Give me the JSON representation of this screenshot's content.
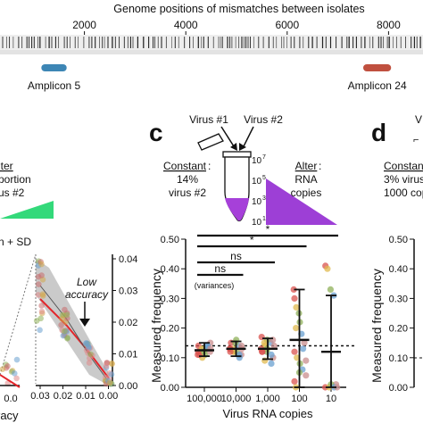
{
  "genome_bar": {
    "title": "Genome positions of mismatches between isolates",
    "ticks": [
      2000,
      4000,
      6000,
      8000
    ],
    "amplicons": [
      {
        "label": "Amplicon 5",
        "start": 1150,
        "end": 1650,
        "color": "#3d86b5"
      },
      {
        "label": "Amplicon 24",
        "start": 7500,
        "end": 8050,
        "color": "#c0503f"
      }
    ]
  },
  "panel_b_fragment": {
    "legend_alter": "lter",
    "legend_line2": "portion",
    "legend_line3": "us #2",
    "mean_sd_label": "n + SD",
    "annotation": "Low accuracy",
    "annotation_line1": "Low",
    "annotation_line2": "accuracy",
    "x_ticks": [
      "0.03",
      "0.02",
      "0.01",
      "0.00"
    ],
    "right_y_ticks": [
      "0.04",
      "0.03",
      "0.02",
      "0.01",
      "0.00"
    ],
    "bottom_tick": "0.0",
    "axis_fragment": "racy",
    "colors": {
      "trend": "#e3262b",
      "band": "#bdbdbd",
      "dots": "#c96b6b"
    }
  },
  "panel_c": {
    "letter": "c",
    "virus1": "Virus #1",
    "virus2": "Virus #2",
    "constant_label": "Constant",
    "constant_line1": "14%",
    "constant_line2": "virus #2",
    "alter_label": "Alter",
    "alter_line1": "RNA",
    "alter_line2": "copies",
    "tube_scale": [
      "10",
      "10",
      "10",
      "10"
    ],
    "tube_scale_exp": [
      "7",
      "5",
      "3",
      "1"
    ],
    "sig_labels": [
      "*",
      "*",
      "ns",
      "ns"
    ],
    "variances_label": "(variances)",
    "colors": {
      "triangle": "#9d3fd6",
      "tube_fill": "#a640d9",
      "bar": "#1a1a1a"
    }
  },
  "chart_data": {
    "type": "scatter",
    "xlabel": "Virus RNA copies",
    "ylabel": "Measured frequency",
    "categories": [
      "100,000",
      "10,000",
      "1,000",
      "100",
      "10"
    ],
    "ylim": [
      0,
      0.5
    ],
    "y_ticks": [
      0.0,
      0.1,
      0.2,
      0.3,
      0.4,
      0.5
    ],
    "y_tick_labels": [
      "0.00",
      "0.10",
      "0.20",
      "0.30",
      "0.40",
      "0.50"
    ],
    "reference_line": 0.14,
    "summary": [
      {
        "category": "100,000",
        "mean": 0.125,
        "sd_low": 0.105,
        "sd_high": 0.15
      },
      {
        "category": "10,000",
        "mean": 0.13,
        "sd_low": 0.105,
        "sd_high": 0.155
      },
      {
        "category": "1,000",
        "mean": 0.13,
        "sd_low": 0.095,
        "sd_high": 0.165
      },
      {
        "category": "100",
        "mean": 0.16,
        "sd_low": 0.0,
        "sd_high": 0.33
      },
      {
        "category": "10",
        "mean": 0.12,
        "sd_low": 0.0,
        "sd_high": 0.31
      }
    ],
    "points": [
      {
        "category": "100,000",
        "values": [
          0.14,
          0.12,
          0.11,
          0.13,
          0.15,
          0.12,
          0.1,
          0.13,
          0.14,
          0.12,
          0.11,
          0.13,
          0.12,
          0.14,
          0.13,
          0.11
        ]
      },
      {
        "category": "10,000",
        "values": [
          0.15,
          0.13,
          0.12,
          0.14,
          0.11,
          0.13,
          0.12,
          0.16,
          0.1,
          0.14,
          0.13,
          0.12,
          0.15,
          0.11,
          0.13,
          0.12
        ]
      },
      {
        "category": "1,000",
        "values": [
          0.17,
          0.14,
          0.12,
          0.15,
          0.1,
          0.13,
          0.09,
          0.16,
          0.11,
          0.14,
          0.12,
          0.15,
          0.13,
          0.08,
          0.16,
          0.12
        ]
      },
      {
        "category": "100",
        "values": [
          0.33,
          0.27,
          0.22,
          0.18,
          0.15,
          0.12,
          0.1,
          0.08,
          0.06,
          0.04,
          0.02,
          0.0,
          0.25,
          0.13,
          0.09,
          0.3,
          0.2,
          0.05
        ]
      },
      {
        "category": "10",
        "values": [
          0.41,
          0.4,
          0.33,
          0.31,
          0.01,
          0.0,
          0.0,
          0.01,
          0.0,
          0.0
        ]
      }
    ],
    "dot_colors": [
      "#d9534f",
      "#e0b94f",
      "#8fb05a",
      "#6aa0d0",
      "#c98d8d"
    ],
    "significance": [
      {
        "from": "100,000",
        "to": "10",
        "label": "*"
      },
      {
        "from": "100,000",
        "to": "100",
        "label": "*"
      },
      {
        "from": "100,000",
        "to": "1,000",
        "label": "ns"
      },
      {
        "from": "100,000",
        "to": "10,000",
        "label": "ns"
      }
    ]
  },
  "panel_d_fragment": {
    "letter": "d",
    "constant_label": "Constan",
    "constant_line1": "3% virus",
    "constant_line2": "1000 copi",
    "top_fragment": "V",
    "ylabel": "Measured frequency",
    "y_tick_labels": [
      "0.00",
      "0.10",
      "0.20",
      "0.30",
      "0.40",
      "0.50"
    ]
  }
}
